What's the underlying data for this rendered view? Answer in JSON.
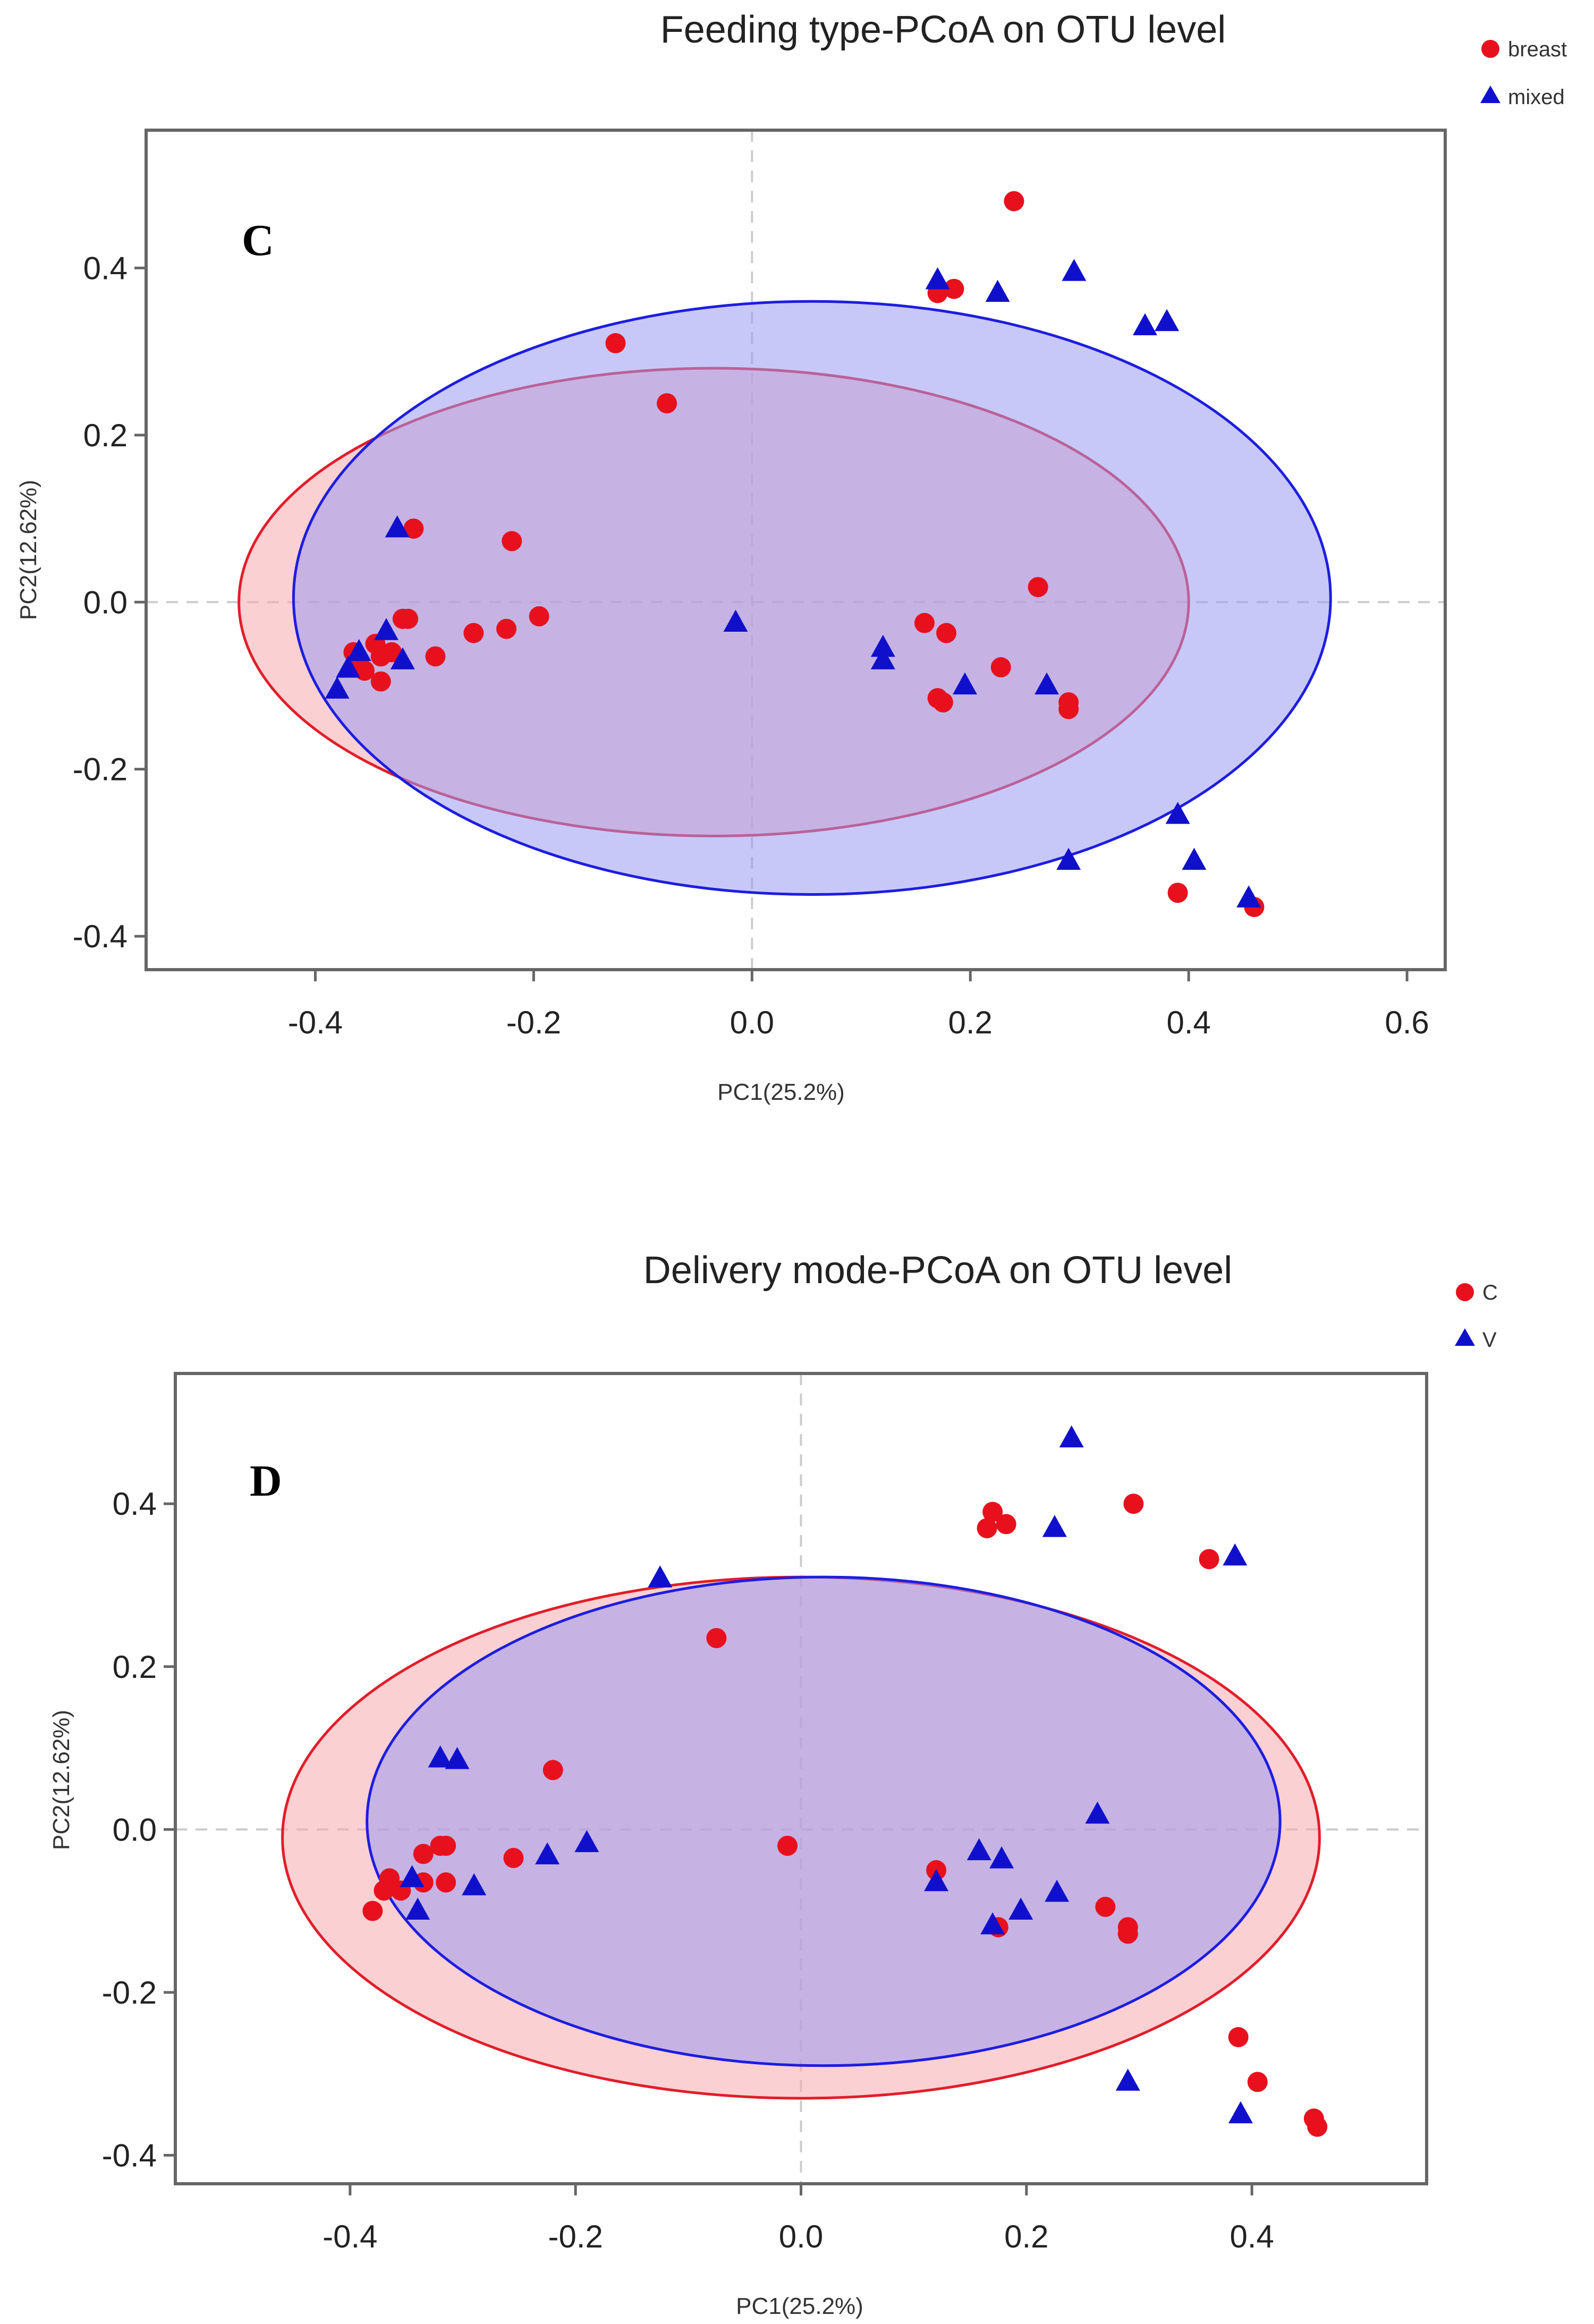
{
  "colors": {
    "group1_point": "#e8101d",
    "group2_point": "#1010cc",
    "ellipse_red_fill": "#f7a9ad",
    "ellipse_red_stroke": "#e11d2a",
    "ellipse_blue_fill": "#9a9af3",
    "ellipse_blue_stroke": "#1d1de0",
    "frame": "#666666",
    "zero_line": "#cccccc"
  },
  "chart_data": [
    {
      "type": "scatter",
      "panel_label": "C",
      "title": "Feeding type-PCoA on OTU level",
      "xlabel": "PC1(25.2%)",
      "ylabel": "PC2(12.62%)",
      "xlim": [
        -0.555,
        0.635
      ],
      "ylim": [
        -0.44,
        0.565
      ],
      "xticks": [
        -0.4,
        -0.2,
        0.0,
        0.2,
        0.4,
        0.6
      ],
      "xtick_labels": [
        "-0.4",
        "-0.2",
        "0.0",
        "0.2",
        "0.4",
        "0.6"
      ],
      "yticks": [
        -0.4,
        -0.2,
        0.0,
        0.2,
        0.4
      ],
      "ytick_labels": [
        "-0.4",
        "-0.2",
        "0.0",
        "0.2",
        "0.4"
      ],
      "legend_position": "top-right",
      "series": [
        {
          "name": "breast",
          "marker": "circle",
          "color": "#e8101d",
          "ellipse": {
            "cx": -0.035,
            "cy": 0.0,
            "rx": 0.435,
            "ry": 0.28
          },
          "points": [
            [
              0.24,
              0.48
            ],
            [
              0.17,
              0.37
            ],
            [
              0.185,
              0.375
            ],
            [
              -0.125,
              0.31
            ],
            [
              -0.078,
              0.238
            ],
            [
              -0.31,
              0.088
            ],
            [
              -0.22,
              0.073
            ],
            [
              0.262,
              0.018
            ],
            [
              -0.365,
              -0.06
            ],
            [
              -0.36,
              -0.07
            ],
            [
              -0.355,
              -0.082
            ],
            [
              -0.345,
              -0.05
            ],
            [
              -0.34,
              -0.065
            ],
            [
              -0.34,
              -0.095
            ],
            [
              -0.33,
              -0.06
            ],
            [
              -0.32,
              -0.02
            ],
            [
              -0.315,
              -0.02
            ],
            [
              -0.29,
              -0.065
            ],
            [
              -0.255,
              -0.037
            ],
            [
              -0.225,
              -0.032
            ],
            [
              -0.195,
              -0.017
            ],
            [
              0.158,
              -0.025
            ],
            [
              0.178,
              -0.037
            ],
            [
              0.17,
              -0.115
            ],
            [
              0.175,
              -0.12
            ],
            [
              0.228,
              -0.078
            ],
            [
              0.29,
              -0.12
            ],
            [
              0.29,
              -0.128
            ],
            [
              0.39,
              -0.348
            ],
            [
              0.46,
              -0.365
            ]
          ]
        },
        {
          "name": "mixed",
          "marker": "triangle",
          "color": "#1010cc",
          "ellipse": {
            "cx": 0.055,
            "cy": 0.005,
            "rx": 0.475,
            "ry": 0.355
          },
          "points": [
            [
              0.17,
              0.385
            ],
            [
              0.225,
              0.37
            ],
            [
              0.295,
              0.395
            ],
            [
              0.36,
              0.33
            ],
            [
              0.38,
              0.335
            ],
            [
              -0.325,
              0.088
            ],
            [
              -0.015,
              -0.025
            ],
            [
              -0.38,
              -0.105
            ],
            [
              -0.37,
              -0.08
            ],
            [
              -0.36,
              -0.06
            ],
            [
              -0.335,
              -0.035
            ],
            [
              -0.32,
              -0.07
            ],
            [
              0.12,
              -0.055
            ],
            [
              0.12,
              -0.07
            ],
            [
              0.195,
              -0.1
            ],
            [
              0.27,
              -0.1
            ],
            [
              0.39,
              -0.255
            ],
            [
              0.405,
              -0.31
            ],
            [
              0.29,
              -0.31
            ],
            [
              0.455,
              -0.355
            ]
          ]
        }
      ]
    },
    {
      "type": "scatter",
      "panel_label": "D",
      "title": "Delivery mode-PCoA on OTU level",
      "xlabel": "PC1(25.2%)",
      "ylabel": "PC2(12.62%)",
      "xlim": [
        -0.555,
        0.555
      ],
      "ylim": [
        -0.435,
        0.56
      ],
      "xticks": [
        -0.4,
        -0.2,
        0.0,
        0.2,
        0.4
      ],
      "xtick_labels": [
        "-0.4",
        "-0.2",
        "0.0",
        "0.2",
        "0.4"
      ],
      "yticks": [
        -0.4,
        -0.2,
        0.0,
        0.2,
        0.4
      ],
      "ytick_labels": [
        "-0.4",
        "-0.2",
        "0.0",
        "0.2",
        "0.4"
      ],
      "legend_position": "top-right",
      "series": [
        {
          "name": "C",
          "marker": "circle",
          "color": "#e8101d",
          "ellipse": {
            "cx": 0.0,
            "cy": -0.01,
            "rx": 0.46,
            "ry": 0.32
          },
          "points": [
            [
              0.17,
              0.39
            ],
            [
              0.165,
              0.37
            ],
            [
              0.182,
              0.375
            ],
            [
              0.295,
              0.4
            ],
            [
              0.362,
              0.332
            ],
            [
              -0.075,
              0.235
            ],
            [
              -0.22,
              0.073
            ],
            [
              -0.012,
              -0.02
            ],
            [
              -0.38,
              -0.1
            ],
            [
              -0.37,
              -0.075
            ],
            [
              -0.365,
              -0.06
            ],
            [
              -0.355,
              -0.075
            ],
            [
              -0.335,
              -0.065
            ],
            [
              -0.335,
              -0.03
            ],
            [
              -0.32,
              -0.02
            ],
            [
              -0.315,
              -0.02
            ],
            [
              -0.315,
              -0.065
            ],
            [
              -0.255,
              -0.035
            ],
            [
              0.12,
              -0.05
            ],
            [
              0.175,
              -0.12
            ],
            [
              0.27,
              -0.095
            ],
            [
              0.29,
              -0.12
            ],
            [
              0.29,
              -0.128
            ],
            [
              0.388,
              -0.255
            ],
            [
              0.405,
              -0.31
            ],
            [
              0.455,
              -0.355
            ],
            [
              0.458,
              -0.365
            ]
          ]
        },
        {
          "name": "V",
          "marker": "triangle",
          "color": "#1010cc",
          "ellipse": {
            "cx": 0.02,
            "cy": 0.01,
            "rx": 0.405,
            "ry": 0.3
          },
          "points": [
            [
              0.24,
              0.48
            ],
            [
              0.225,
              0.37
            ],
            [
              0.385,
              0.335
            ],
            [
              -0.125,
              0.308
            ],
            [
              -0.32,
              0.087
            ],
            [
              -0.305,
              0.085
            ],
            [
              0.263,
              0.018
            ],
            [
              -0.345,
              -0.06
            ],
            [
              -0.34,
              -0.1
            ],
            [
              -0.29,
              -0.07
            ],
            [
              -0.225,
              -0.032
            ],
            [
              -0.19,
              -0.017
            ],
            [
              0.12,
              -0.065
            ],
            [
              0.158,
              -0.027
            ],
            [
              0.178,
              -0.037
            ],
            [
              0.17,
              -0.118
            ],
            [
              0.195,
              -0.1
            ],
            [
              0.227,
              -0.078
            ],
            [
              0.29,
              -0.31
            ],
            [
              0.39,
              -0.35
            ]
          ]
        }
      ]
    }
  ]
}
